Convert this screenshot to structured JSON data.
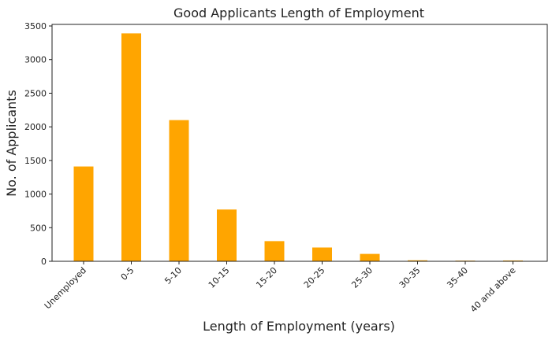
{
  "chart_data": {
    "type": "bar",
    "title": "Good Applicants Length of Employment",
    "xlabel": "Length of Employment (years)",
    "ylabel": "No. of Applicants",
    "categories": [
      "Unemployed",
      "0-5",
      "5-10",
      "10-15",
      "15-20",
      "20-25",
      "25-30",
      "30-35",
      "35-40",
      "40 and above"
    ],
    "values": [
      1410,
      3390,
      2100,
      770,
      300,
      205,
      110,
      15,
      10,
      12
    ],
    "ylim": [
      0,
      3500
    ],
    "yticks": [
      0,
      500,
      1000,
      1500,
      2000,
      2500,
      3000,
      3500
    ],
    "bar_color": "#FFA500",
    "grid": false,
    "legend": "none"
  }
}
